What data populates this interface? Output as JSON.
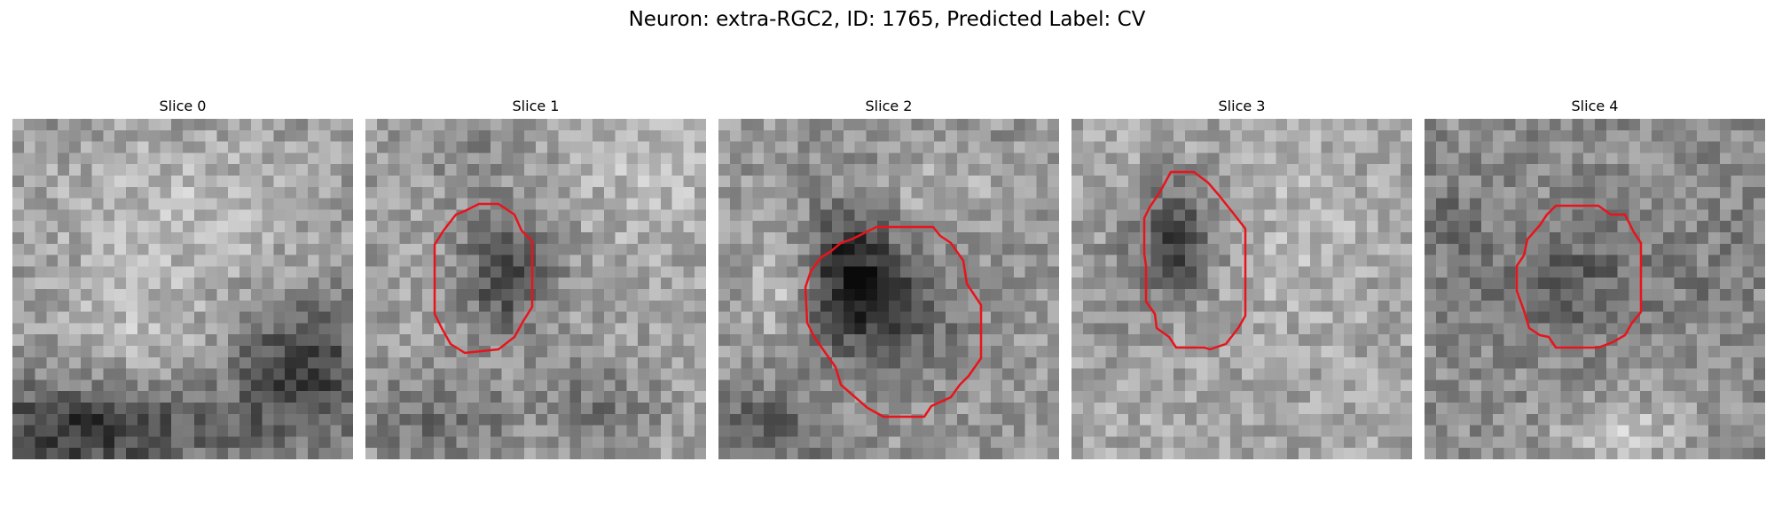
{
  "figure": {
    "title": "Neuron: extra-RGC2, ID: 1765, Predicted Label: CV"
  },
  "panels": [
    {
      "title": "Slice 0",
      "has_contour": false
    },
    {
      "title": "Slice 1",
      "has_contour": true
    },
    {
      "title": "Slice 2",
      "has_contour": true
    },
    {
      "title": "Slice 3",
      "has_contour": true
    },
    {
      "title": "Slice 4",
      "has_contour": true
    }
  ],
  "style": {
    "colormap": "gray",
    "contour_color": "#e8141c"
  }
}
